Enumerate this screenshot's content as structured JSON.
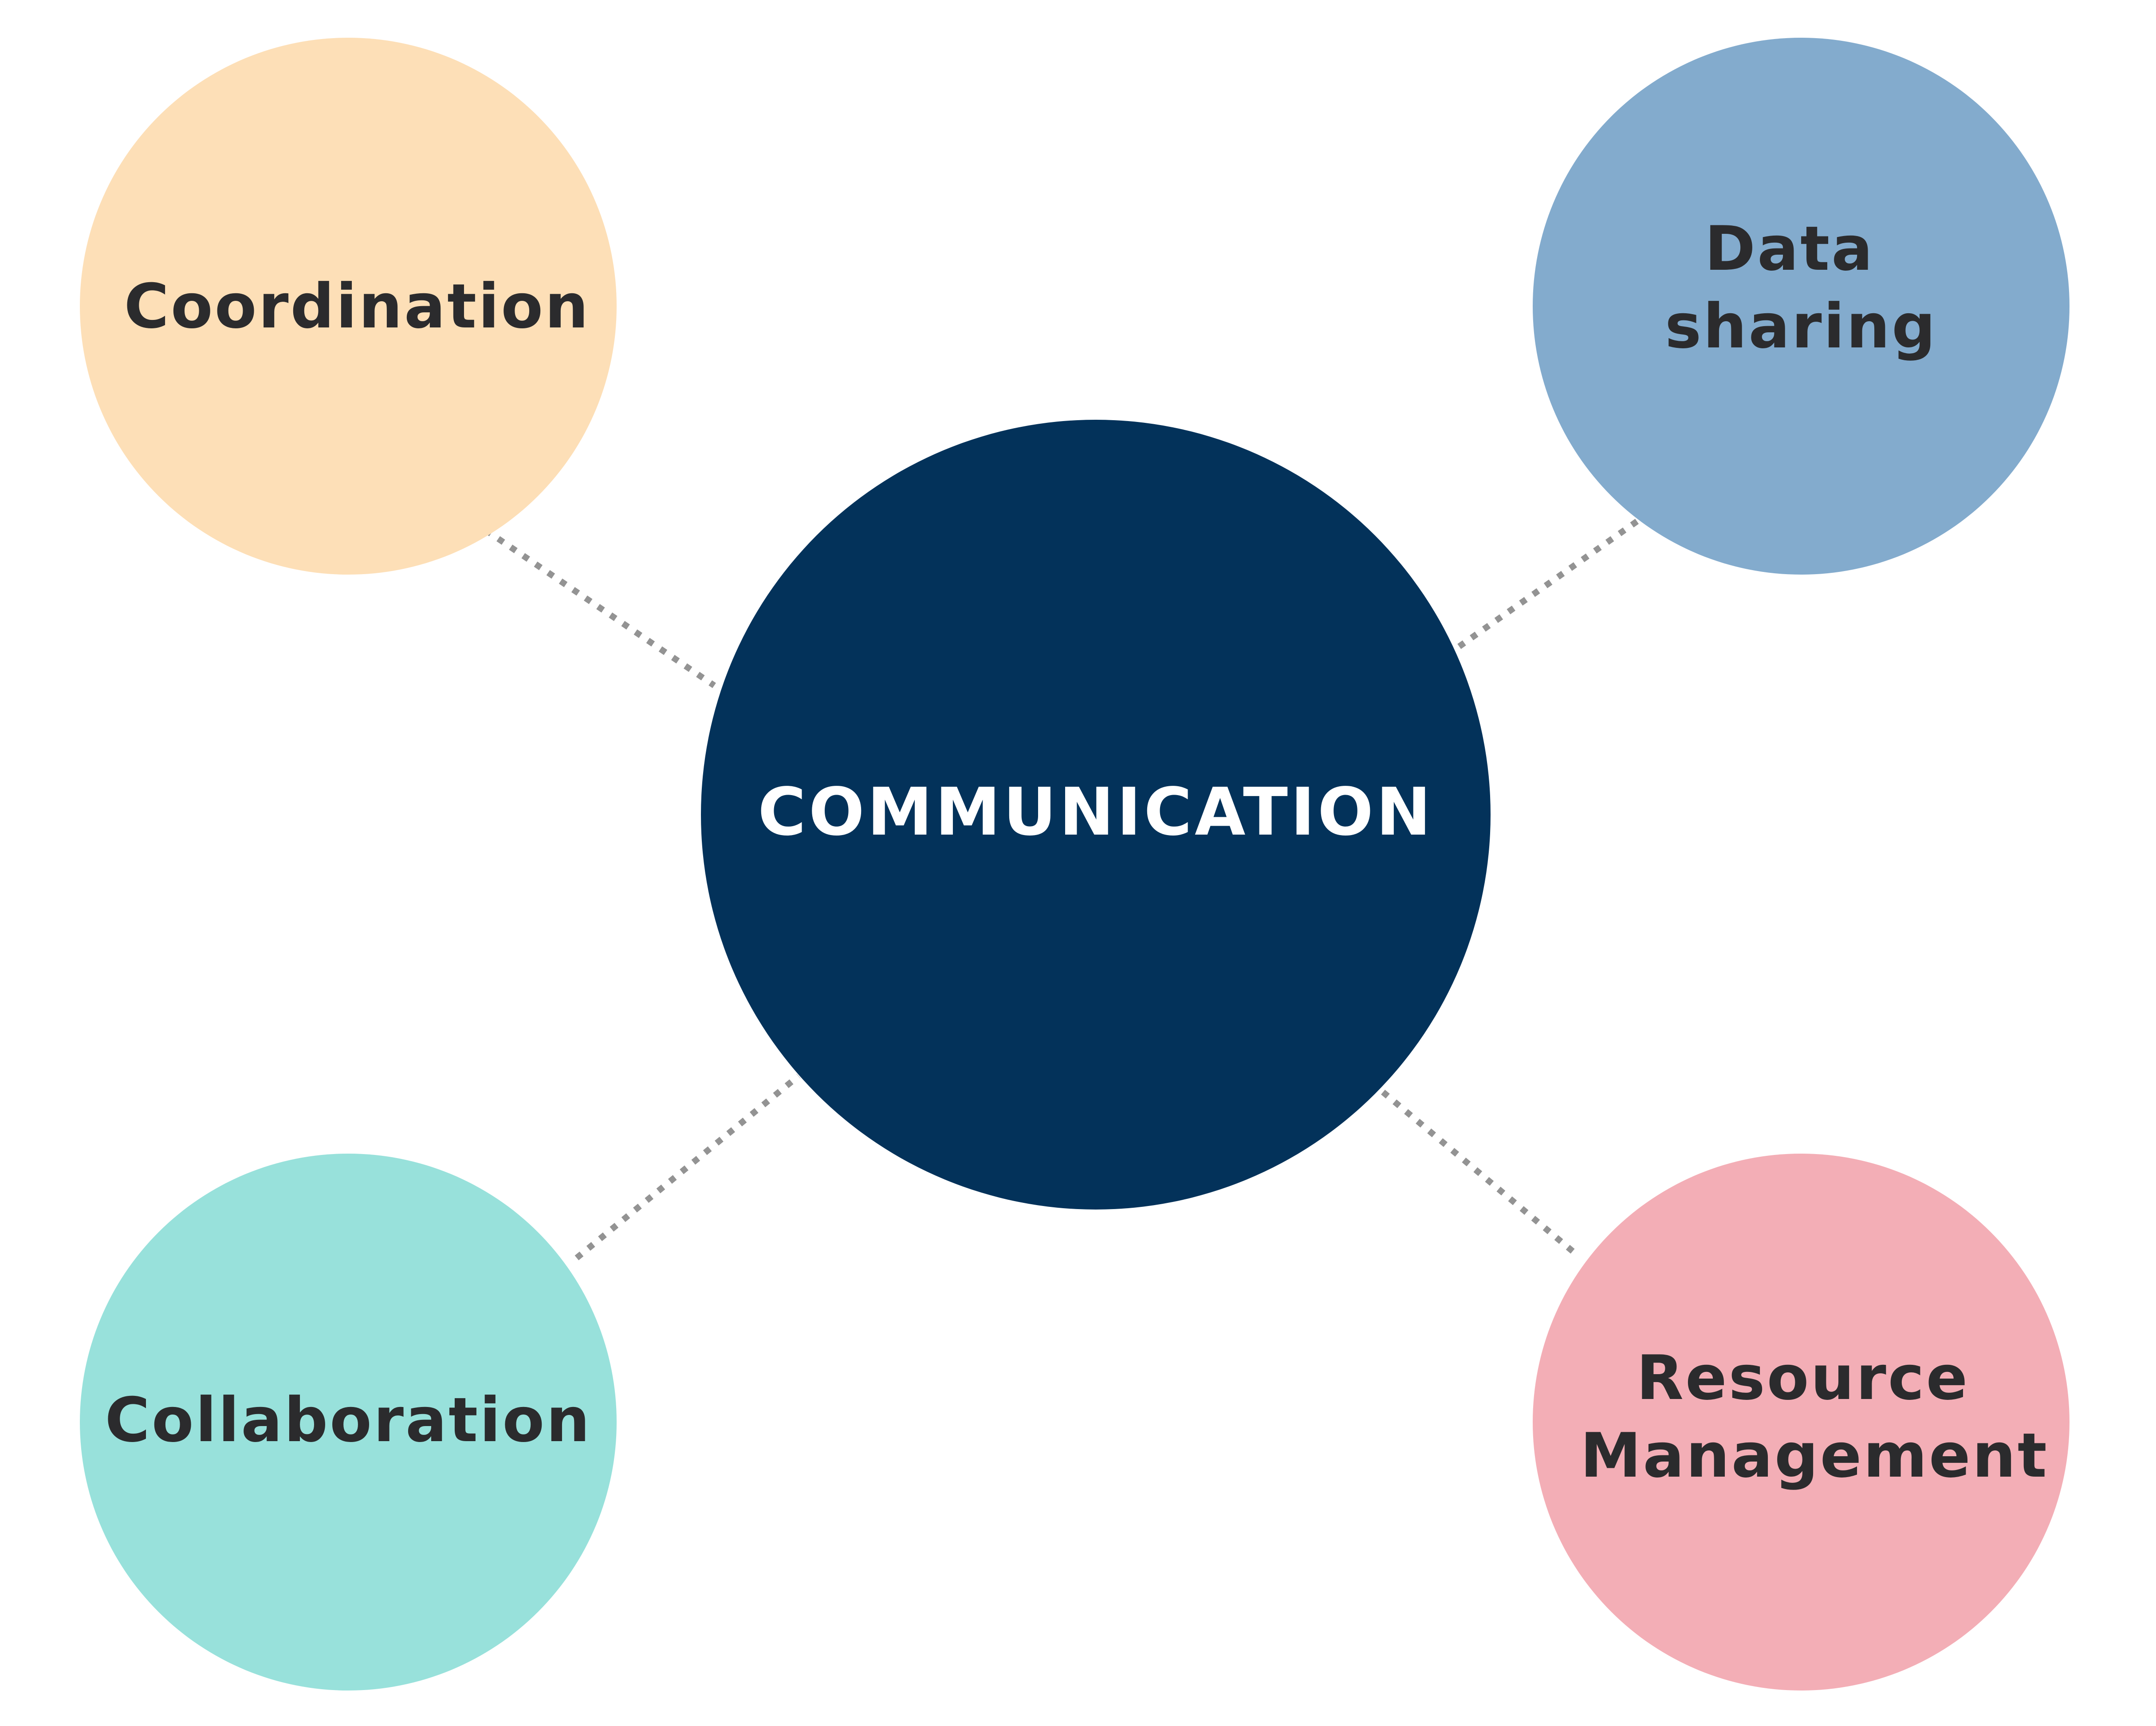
{
  "hub": {
    "label": "COMMUNICATION",
    "color": "#03325a"
  },
  "nodes": [
    {
      "id": "coordination",
      "lines": [
        "Coordination"
      ],
      "color": "#fddfb7"
    },
    {
      "id": "data-sharing",
      "lines": [
        "Data",
        "sharing"
      ],
      "color": "#83abcd"
    },
    {
      "id": "collaboration",
      "lines": [
        "Collaboration"
      ],
      "color": "#98e1db"
    },
    {
      "id": "resource-management",
      "lines": [
        "Resource",
        "Management"
      ],
      "color": "#f3aeb6"
    }
  ]
}
